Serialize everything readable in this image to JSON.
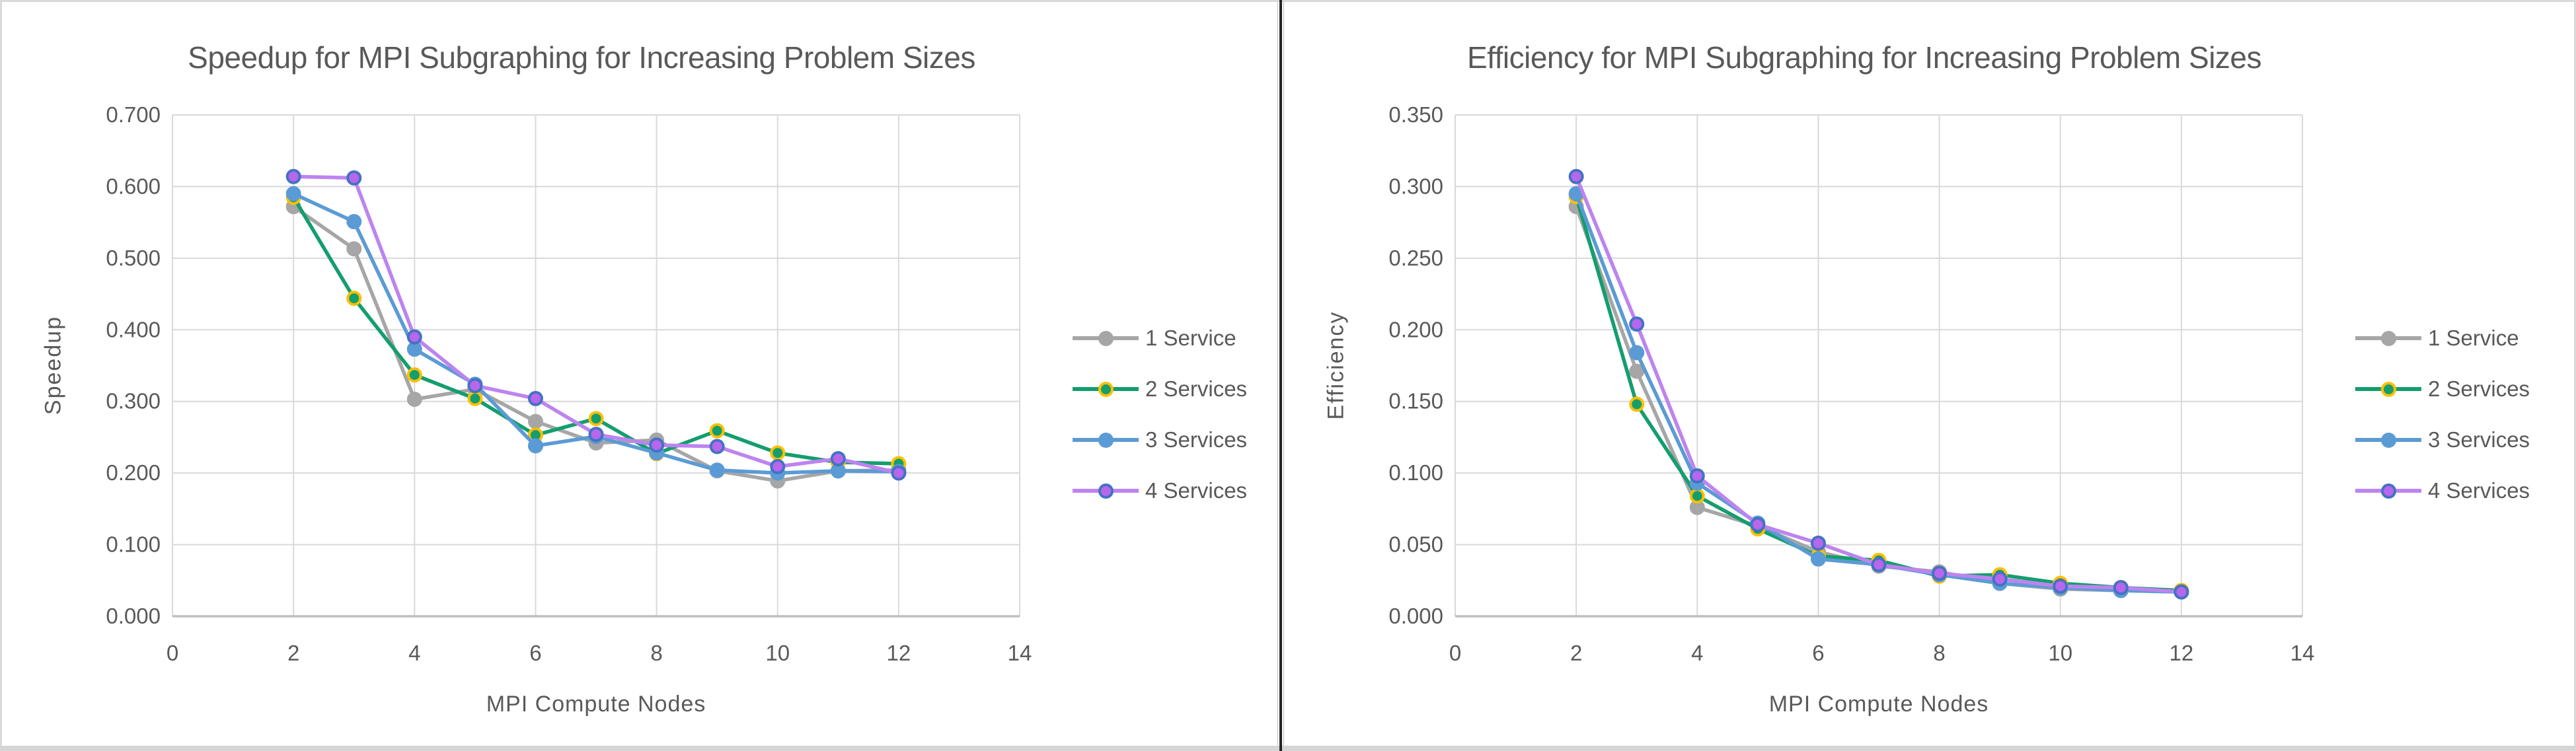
{
  "theme": {
    "background": "#FFFFFF",
    "grid_color": "#D9D9D9",
    "axis_line_color": "#BFBFBF",
    "text_color": "#595959",
    "divider_dark": "#262626",
    "divider_light": "#BFBFBF",
    "frame_color": "#D9D9D9",
    "bottom_strip_color": "#D5D5D5"
  },
  "series_meta": [
    {
      "name": "1 Service",
      "line": "#A6A6A6",
      "fill": "#A6A6A6",
      "ring": "#A6A6A6"
    },
    {
      "name": "2 Services",
      "line": "#149E6D",
      "fill": "#149E6D",
      "ring": "#FFC000"
    },
    {
      "name": "3 Services",
      "line": "#5B9BD5",
      "fill": "#5B9BD5",
      "ring": "#5B9BD5"
    },
    {
      "name": "4 Services",
      "line": "#BD84EF",
      "fill": "#B767EC",
      "ring": "#4472C4"
    }
  ],
  "chart_data": [
    {
      "type": "line",
      "title": "Speedup for MPI Subgraphing for Increasing Problem Sizes",
      "xlabel": "MPI Compute Nodes",
      "ylabel": "Speedup",
      "xlim": [
        0,
        14
      ],
      "xtick_step": 2,
      "ylim": [
        0,
        0.7
      ],
      "ytick_step": 0.1,
      "ytick_decimals": 3,
      "grid": true,
      "legend_position": "right",
      "x": [
        2,
        3,
        4,
        5,
        6,
        7,
        8,
        9,
        10,
        11,
        12
      ],
      "series": [
        {
          "name": "1 Service",
          "values": [
            0.572,
            0.513,
            0.303,
            0.317,
            0.272,
            0.242,
            0.246,
            0.203,
            0.189,
            0.203,
            0.204
          ]
        },
        {
          "name": "2 Services",
          "values": [
            0.585,
            0.444,
            0.337,
            0.304,
            0.253,
            0.276,
            0.227,
            0.259,
            0.228,
            0.215,
            0.213
          ]
        },
        {
          "name": "3 Services",
          "values": [
            0.59,
            0.551,
            0.373,
            0.324,
            0.238,
            0.251,
            0.228,
            0.204,
            0.2,
            0.203,
            0.202
          ]
        },
        {
          "name": "4 Services",
          "values": [
            0.614,
            0.612,
            0.39,
            0.322,
            0.304,
            0.254,
            0.239,
            0.237,
            0.209,
            0.22,
            0.2
          ]
        }
      ]
    },
    {
      "type": "line",
      "title": "Efficiency for MPI Subgraphing for Increasing Problem Sizes",
      "xlabel": "MPI Compute Nodes",
      "ylabel": "Efficiency",
      "xlim": [
        0,
        14
      ],
      "xtick_step": 2,
      "ylim": [
        0,
        0.35
      ],
      "ytick_step": 0.05,
      "ytick_decimals": 3,
      "grid": true,
      "legend_position": "right",
      "x": [
        2,
        3,
        4,
        5,
        6,
        7,
        8,
        9,
        10,
        11,
        12
      ],
      "series": [
        {
          "name": "1 Service",
          "values": [
            0.286,
            0.171,
            0.076,
            0.063,
            0.045,
            0.035,
            0.031,
            0.023,
            0.019,
            0.018,
            0.017
          ]
        },
        {
          "name": "2 Services",
          "values": [
            0.293,
            0.148,
            0.084,
            0.061,
            0.042,
            0.039,
            0.028,
            0.029,
            0.023,
            0.02,
            0.018
          ]
        },
        {
          "name": "3 Services",
          "values": [
            0.295,
            0.184,
            0.093,
            0.065,
            0.04,
            0.036,
            0.029,
            0.023,
            0.02,
            0.018,
            0.017
          ]
        },
        {
          "name": "4 Services",
          "values": [
            0.307,
            0.204,
            0.098,
            0.064,
            0.051,
            0.036,
            0.03,
            0.026,
            0.021,
            0.02,
            0.017
          ]
        }
      ]
    }
  ]
}
